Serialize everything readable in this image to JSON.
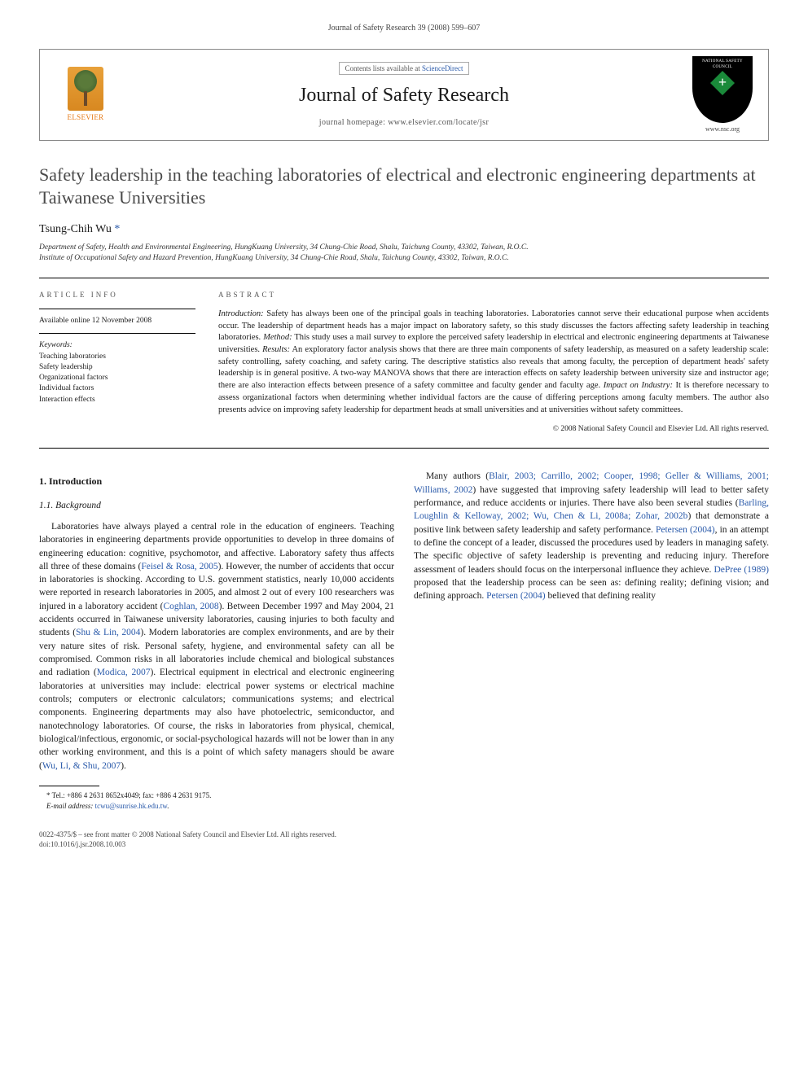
{
  "running_head": "Journal of Safety Research 39 (2008) 599–607",
  "masthead": {
    "contents_line_prefix": "Contents lists available at ",
    "contents_link": "ScienceDirect",
    "journal_title": "Journal of Safety Research",
    "homepage_prefix": "journal homepage: ",
    "homepage": "www.elsevier.com/locate/jsr",
    "elsevier_label": "ELSEVIER",
    "nsc_top": "NATIONAL SAFETY COUNCIL",
    "nsc_url": "www.nsc.org"
  },
  "article": {
    "title": "Safety leadership in the teaching laboratories of electrical and electronic engineering departments at Taiwanese Universities",
    "author": "Tsung-Chih Wu",
    "corr_mark": "*",
    "affiliations": [
      "Department of Safety, Health and Environmental Engineering, HungKuang University, 34 Chung-Chie Road, Shalu, Taichung County, 43302, Taiwan, R.O.C.",
      "Institute of Occupational Safety and Hazard Prevention, HungKuang University, 34 Chung-Chie Road, Shalu, Taichung County, 43302, Taiwan, R.O.C."
    ]
  },
  "info": {
    "heading": "article info",
    "available": "Available online 12 November 2008",
    "keywords_label": "Keywords:",
    "keywords": [
      "Teaching laboratories",
      "Safety leadership",
      "Organizational factors",
      "Individual factors",
      "Interaction effects"
    ]
  },
  "abstract": {
    "heading": "abstract",
    "labels": {
      "intro": "Introduction:",
      "method": "Method:",
      "results": "Results:",
      "impact": "Impact on Industry:"
    },
    "intro": " Safety has always been one of the principal goals in teaching laboratories. Laboratories cannot serve their educational purpose when accidents occur. The leadership of department heads has a major impact on laboratory safety, so this study discusses the factors affecting safety leadership in teaching laboratories. ",
    "method": " This study uses a mail survey to explore the perceived safety leadership in electrical and electronic engineering departments at Taiwanese universities. ",
    "results": " An exploratory factor analysis shows that there are three main components of safety leadership, as measured on a safety leadership scale: safety controlling, safety coaching, and safety caring. The descriptive statistics also reveals that among faculty, the perception of department heads' safety leadership is in general positive. A two-way MANOVA shows that there are interaction effects on safety leadership between university size and instructor age; there are also interaction effects between presence of a safety committee and faculty gender and faculty age. ",
    "impact": " It is therefore necessary to assess organizational factors when determining whether individual factors are the cause of differing perceptions among faculty members. The author also presents advice on improving safety leadership for department heads at small universities and at universities without safety committees.",
    "copyright": "© 2008 National Safety Council and Elsevier Ltd. All rights reserved."
  },
  "body": {
    "h_intro": "1. Introduction",
    "h_background": "1.1. Background",
    "p1a": "Laboratories have always played a central role in the education of engineers. Teaching laboratories in engineering departments provide opportunities to develop in three domains of engineering education: cognitive, psychomotor, and affective. Laboratory safety thus affects all three of these domains (",
    "r_feisel": "Feisel & Rosa, 2005",
    "p1b": "). However, the number of accidents that occur in laboratories is shocking. According to U.S. government statistics, nearly 10,000 accidents were reported in research laboratories in 2005, and almost 2 out of every 100 researchers was injured in a laboratory accident (",
    "r_coghlan": "Coghlan, 2008",
    "p1c": "). Between December 1997 and May 2004, 21 accidents occurred in Taiwanese university laboratories, causing injuries to both faculty and students (",
    "r_shu": "Shu & Lin, 2004",
    "p1d": "). Modern laboratories are complex environments, and are by their very nature sites of risk. Personal safety, hygiene, and environmental safety can all be compromised. Common risks in all laboratories include chemical ",
    "p2a": "and biological substances and radiation (",
    "r_modica": "Modica, 2007",
    "p2b": "). Electrical equipment in electrical and electronic engineering laboratories at universities may include: electrical power systems or electrical machine controls; computers or electronic calculators; communications systems; and electrical components. Engineering departments may also have photoelectric, semiconductor, and nanotechnology laboratories. Of course, the risks in laboratories from physical, chemical, biological/infectious, ergonomic, or social-psychological hazards will not be lower than in any other working environment, and this is a point of which safety managers should be aware (",
    "r_wulishu": "Wu, Li, & Shu, 2007",
    "p2c": ").",
    "p3a": "Many authors (",
    "r_many": "Blair, 2003; Carrillo, 2002; Cooper, 1998; Geller & Williams, 2001; Williams, 2002",
    "p3b": ") have suggested that improving safety leadership will lead to better safety performance, and reduce accidents or injuries. There have also been several studies (",
    "r_several": "Barling, Loughlin & Kelloway, 2002; Wu, Chen & Li, 2008a; Zohar, 2002b",
    "p3c": ") that demonstrate a positive link between safety leadership and safety performance. ",
    "r_petersen1": "Petersen (2004)",
    "p3d": ", in an attempt to define the concept of a leader, discussed the procedures used by leaders in managing safety. The specific objective of safety leadership is preventing and reducing injury. Therefore assessment of leaders should focus on the interpersonal influence they achieve. ",
    "r_depree": "DePree (1989)",
    "p3e": " proposed that the leadership process can be seen as: defining reality; defining vision; and defining approach. ",
    "r_petersen2": "Petersen (2004)",
    "p3f": " believed that defining reality"
  },
  "footnote": {
    "corr": "* Tel.: +886 4 2631 8652x4049; fax: +886 4 2631 9175.",
    "email_label": "E-mail address:",
    "email": "tcwu@sunrise.hk.edu.tw",
    "email_suffix": "."
  },
  "footer": {
    "line1": "0022-4375/$ – see front matter © 2008 National Safety Council and Elsevier Ltd. All rights reserved.",
    "line2": "doi:10.1016/j.jsr.2008.10.003"
  },
  "colors": {
    "link": "#2a5aaa",
    "text": "#1a1a1a",
    "muted": "#555555"
  }
}
